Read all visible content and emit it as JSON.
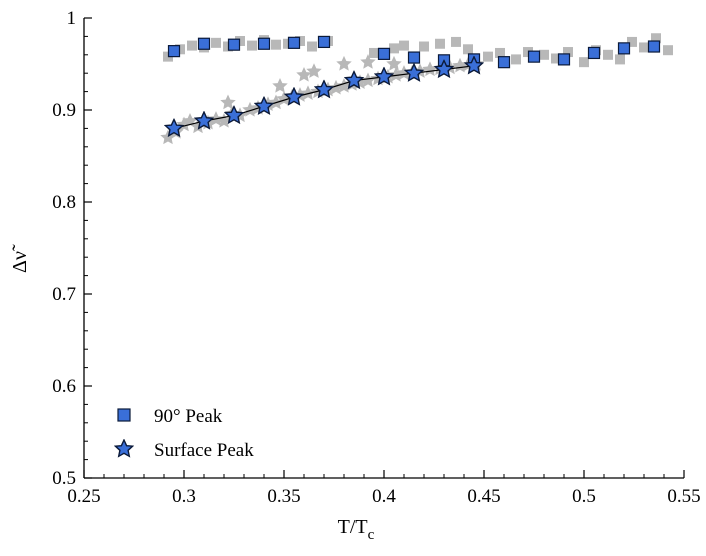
{
  "chart_data": {
    "type": "scatter",
    "title": "",
    "xlabel": "T/T",
    "xlabel_sub": "c",
    "ylabel": "Δν̃",
    "xlim": [
      0.25,
      0.55
    ],
    "ylim": [
      0.5,
      1.0
    ],
    "xticks": [
      0.25,
      0.3,
      0.35,
      0.4,
      0.45,
      0.5,
      0.55
    ],
    "xtick_labels": [
      "0.25",
      "0.3",
      "0.35",
      "0.4",
      "0.45",
      "0.5",
      "0.55"
    ],
    "yticks": [
      0.5,
      0.6,
      0.7,
      0.8,
      0.9,
      1.0
    ],
    "ytick_labels": [
      "0.5",
      "0.6",
      "0.7",
      "0.8",
      "0.9",
      "1"
    ],
    "legend_position": "bottom-left",
    "colors": {
      "series_fill": "#3a6fd8",
      "series_stroke": "#0b1a3a",
      "background_points": "#b8b8b8",
      "axis": "#000000"
    },
    "series": [
      {
        "name": "90° Peak",
        "marker": "square",
        "x": [
          0.295,
          0.31,
          0.325,
          0.34,
          0.355,
          0.37,
          0.4,
          0.415,
          0.43,
          0.445,
          0.46,
          0.475,
          0.49,
          0.505,
          0.52,
          0.535
        ],
        "y": [
          0.964,
          0.972,
          0.971,
          0.972,
          0.973,
          0.974,
          0.961,
          0.957,
          0.954,
          0.955,
          0.952,
          0.958,
          0.955,
          0.962,
          0.967,
          0.969
        ]
      },
      {
        "name": "Surface Peak",
        "marker": "star",
        "line": true,
        "x": [
          0.295,
          0.31,
          0.325,
          0.34,
          0.355,
          0.37,
          0.385,
          0.4,
          0.415,
          0.43,
          0.445
        ],
        "y": [
          0.88,
          0.888,
          0.894,
          0.904,
          0.914,
          0.922,
          0.932,
          0.936,
          0.94,
          0.944,
          0.948
        ]
      },
      {
        "name": "90° Peak (gray background)",
        "marker": "square",
        "style": "background",
        "x": [
          0.292,
          0.298,
          0.304,
          0.31,
          0.316,
          0.322,
          0.328,
          0.334,
          0.34,
          0.346,
          0.352,
          0.358,
          0.364,
          0.372,
          0.395,
          0.405,
          0.41,
          0.42,
          0.428,
          0.436,
          0.442,
          0.452,
          0.458,
          0.466,
          0.472,
          0.48,
          0.486,
          0.492,
          0.5,
          0.506,
          0.512,
          0.518,
          0.524,
          0.53,
          0.536,
          0.542
        ],
        "y": [
          0.958,
          0.966,
          0.97,
          0.968,
          0.973,
          0.969,
          0.975,
          0.97,
          0.976,
          0.971,
          0.972,
          0.975,
          0.969,
          0.975,
          0.962,
          0.967,
          0.97,
          0.969,
          0.972,
          0.974,
          0.966,
          0.958,
          0.962,
          0.955,
          0.963,
          0.96,
          0.956,
          0.963,
          0.952,
          0.965,
          0.96,
          0.955,
          0.974,
          0.968,
          0.978,
          0.965
        ]
      },
      {
        "name": "Surface Peak (gray background)",
        "marker": "star",
        "style": "background",
        "x": [
          0.292,
          0.296,
          0.3,
          0.303,
          0.307,
          0.312,
          0.316,
          0.32,
          0.324,
          0.328,
          0.333,
          0.337,
          0.342,
          0.346,
          0.35,
          0.354,
          0.358,
          0.362,
          0.367,
          0.372,
          0.376,
          0.38,
          0.384,
          0.388,
          0.392,
          0.397,
          0.402,
          0.406,
          0.41,
          0.414,
          0.418,
          0.423,
          0.428,
          0.433,
          0.438,
          0.442,
          0.446,
          0.36,
          0.365,
          0.38,
          0.392,
          0.405,
          0.322,
          0.348
        ],
        "y": [
          0.87,
          0.876,
          0.884,
          0.888,
          0.882,
          0.886,
          0.89,
          0.888,
          0.896,
          0.894,
          0.9,
          0.902,
          0.906,
          0.908,
          0.912,
          0.914,
          0.916,
          0.918,
          0.92,
          0.922,
          0.924,
          0.926,
          0.928,
          0.93,
          0.932,
          0.934,
          0.936,
          0.938,
          0.94,
          0.94,
          0.942,
          0.944,
          0.945,
          0.946,
          0.948,
          0.949,
          0.95,
          0.938,
          0.942,
          0.95,
          0.952,
          0.95,
          0.908,
          0.926
        ]
      }
    ]
  }
}
